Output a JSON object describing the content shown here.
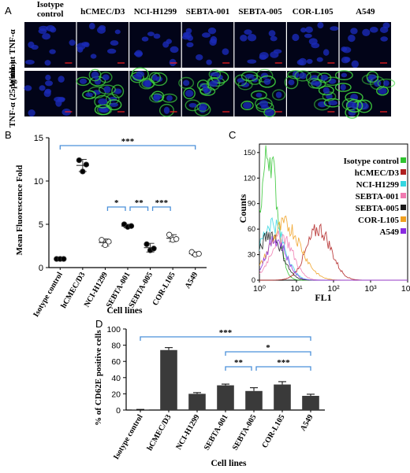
{
  "panel_a": {
    "label": "A",
    "columns": [
      "Isotype control",
      "hCMEC/D3",
      "NCI-H1299",
      "SEBTA-001",
      "SEBTA-005",
      "COR-L105",
      "A549"
    ],
    "row_labels": [
      "Without TNF-α",
      "TNF-α (25pg/mL)"
    ],
    "colors": {
      "nuclei": "#1a2ab8",
      "membrane": "#3fd13f",
      "scale_bar": "#ff2020",
      "background": "#020418"
    }
  },
  "chart_data": [
    {
      "panel": "B",
      "type": "scatter",
      "categories": [
        "Isotype control",
        "hCMEC/D3",
        "NCI-H1299",
        "SEBTA-001",
        "SEBTA-005",
        "COR-L105",
        "A549"
      ],
      "means": [
        1.0,
        11.8,
        2.9,
        4.8,
        2.3,
        3.4,
        1.6
      ],
      "sd": [
        0.1,
        0.7,
        0.4,
        0.2,
        0.5,
        0.4,
        0.2
      ],
      "points": [
        [
          1.0,
          1.0,
          1.0
        ],
        [
          12.4,
          11.1,
          11.9
        ],
        [
          3.2,
          2.6,
          3.0
        ],
        [
          5.0,
          4.7,
          4.8
        ],
        [
          2.7,
          2.0,
          2.2
        ],
        [
          3.8,
          3.2,
          3.3
        ],
        [
          1.8,
          1.5,
          1.6
        ]
      ],
      "marker_fill": [
        "#000000",
        "#000000",
        "#ffffff",
        "#000000",
        "#000000",
        "#ffffff",
        "#ffffff"
      ],
      "ylabel": "Mean Fluorescence Fold",
      "xlabel": "Cell lines",
      "ylim": [
        0,
        15
      ],
      "yticks": [
        0,
        5,
        10,
        15
      ],
      "significance": [
        {
          "from": 0,
          "to": 6,
          "label": "***"
        },
        {
          "from": 2,
          "to": 3,
          "label": "*"
        },
        {
          "from": 3,
          "to": 4,
          "label": "**"
        },
        {
          "from": 4,
          "to": 5,
          "label": "***"
        }
      ]
    },
    {
      "panel": "C",
      "type": "line",
      "xscale": "log",
      "xlim": [
        1,
        10000
      ],
      "xticks": [
        "10⁰",
        "10¹",
        "10²",
        "10³",
        "10⁴"
      ],
      "ylim": [
        0,
        160
      ],
      "yticks": [
        0,
        30,
        60,
        90,
        120,
        150
      ],
      "ylabel": "Counts",
      "xlabel": "FL1",
      "series": [
        {
          "name": "Isotype control",
          "color": "#2fc42f",
          "peak_x": 1.8,
          "peak_y": 150,
          "width": 0.22
        },
        {
          "name": "hCMEC/D3",
          "color": "#b02020",
          "peak_x": 40,
          "peak_y": 60,
          "width": 0.33
        },
        {
          "name": "NCI-H1299",
          "color": "#33d6e0",
          "peak_x": 2.2,
          "peak_y": 68,
          "width": 0.32
        },
        {
          "name": "SEBTA-001",
          "color": "#f07ab0",
          "peak_x": 4,
          "peak_y": 52,
          "width": 0.3
        },
        {
          "name": "SEBTA-005",
          "color": "#1a1a1a",
          "peak_x": 2.0,
          "peak_y": 55,
          "width": 0.3
        },
        {
          "name": "COR-L105",
          "color": "#f0a020",
          "peak_x": 5,
          "peak_y": 65,
          "width": 0.42
        },
        {
          "name": "A549",
          "color": "#8a2be2",
          "peak_x": 2.8,
          "peak_y": 48,
          "width": 0.28
        }
      ]
    },
    {
      "panel": "D",
      "type": "bar",
      "categories": [
        "Isotype control",
        "hCMEC/D3",
        "NCI-H1299",
        "SEBTA-001",
        "SEBTA-005",
        "COR-L105",
        "A549"
      ],
      "values": [
        0.5,
        74,
        20,
        30.5,
        23.5,
        31.5,
        17.5
      ],
      "errors": [
        0.3,
        3,
        1.5,
        1.5,
        4,
        3.5,
        2
      ],
      "ylabel": "% of CD62E positive cells",
      "xlabel": "Cell lines",
      "ylim": [
        0,
        100
      ],
      "yticks": [
        0,
        20,
        40,
        60,
        80,
        100
      ],
      "bar_color": "#3a3a3a",
      "significance": [
        {
          "from": 0,
          "to": 6,
          "label": "***"
        },
        {
          "from": 3,
          "to": 6,
          "label": "*"
        },
        {
          "from": 3,
          "to": 4,
          "label": "**"
        },
        {
          "from": 4,
          "to": 6,
          "label": "***"
        }
      ]
    }
  ]
}
